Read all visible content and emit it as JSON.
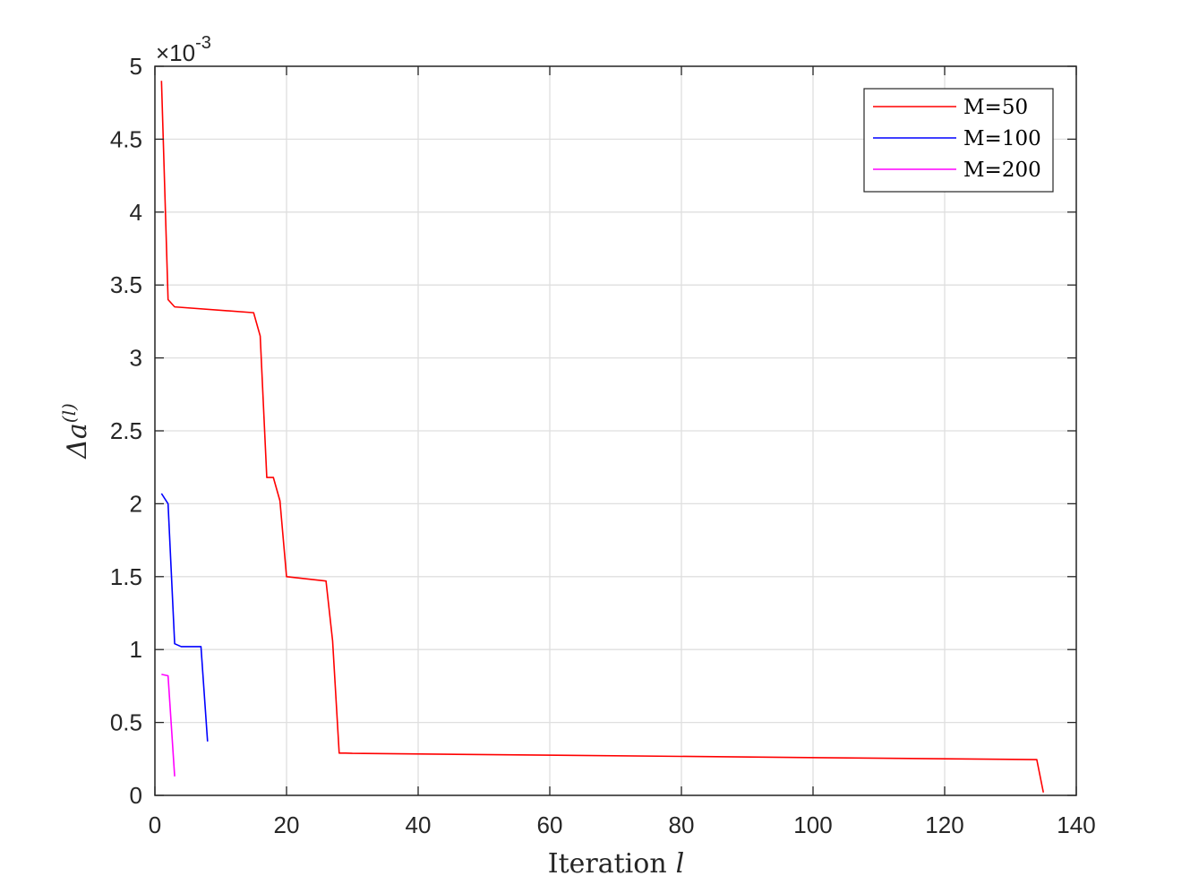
{
  "chart_data": {
    "type": "line",
    "xlabel": "Iteration",
    "xlabel_var": "l",
    "ylabel": "Δa",
    "ylabel_sup": "(l)",
    "y_exponent_prefix": "×10",
    "y_exponent_power": "-3",
    "xlim": [
      0,
      140
    ],
    "ylim": [
      0,
      0.005
    ],
    "xticks": [
      0,
      20,
      40,
      60,
      80,
      100,
      120,
      140
    ],
    "xtick_labels": [
      "0",
      "20",
      "40",
      "60",
      "80",
      "100",
      "120",
      "140"
    ],
    "yticks": [
      0,
      0.0005,
      0.001,
      0.0015,
      0.002,
      0.0025,
      0.003,
      0.0035,
      0.004,
      0.0045,
      0.005
    ],
    "ytick_labels": [
      "0",
      "0.5",
      "1",
      "1.5",
      "2",
      "2.5",
      "3",
      "3.5",
      "4",
      "4.5",
      "5"
    ],
    "grid": true,
    "legend_position": "top-right",
    "series": [
      {
        "name": "M=50",
        "color": "#ff0000",
        "x": [
          1,
          2,
          3,
          15,
          16,
          17,
          18,
          19,
          20,
          26,
          27,
          28,
          29,
          30,
          134,
          135
        ],
        "y": [
          0.0049,
          0.0034,
          0.00335,
          0.00331,
          0.00315,
          0.00218,
          0.00218,
          0.00202,
          0.0015,
          0.00147,
          0.00106,
          0.00029,
          0.00029,
          0.000288,
          0.000245,
          2e-05
        ]
      },
      {
        "name": "M=100",
        "color": "#0000ff",
        "x": [
          1,
          2,
          3,
          4,
          5,
          6,
          7,
          8
        ],
        "y": [
          0.00207,
          0.002,
          0.00104,
          0.00102,
          0.00102,
          0.00102,
          0.00102,
          0.00037
        ]
      },
      {
        "name": "M=200",
        "color": "#ff00ff",
        "x": [
          1,
          2,
          3
        ],
        "y": [
          0.00083,
          0.00082,
          0.00013
        ]
      }
    ]
  }
}
